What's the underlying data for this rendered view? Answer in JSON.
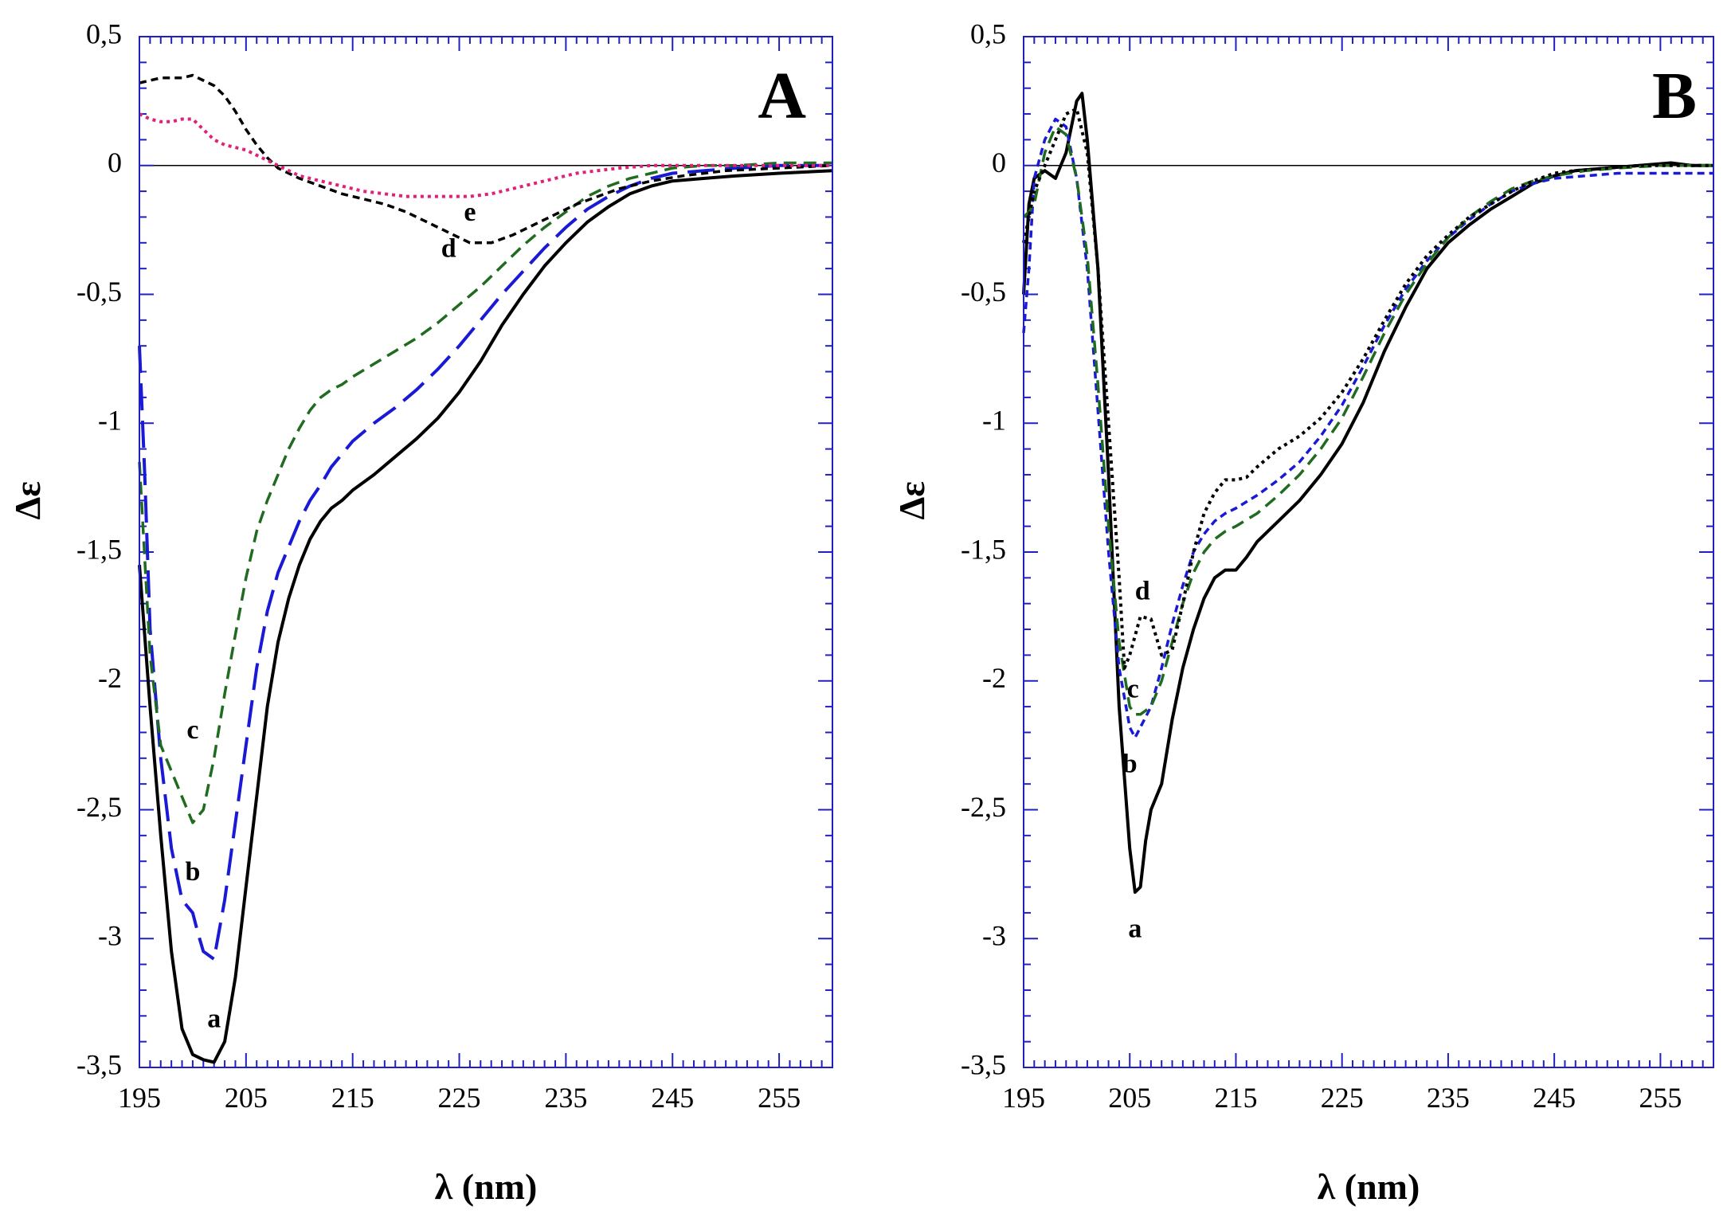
{
  "chart_data": [
    {
      "type": "line",
      "panel_label": "A",
      "xlabel": "λ (nm)",
      "ylabel": "Δε",
      "xlim": [
        195,
        260
      ],
      "ylim": [
        -3.5,
        0.5
      ],
      "xticks": [
        195,
        205,
        215,
        225,
        235,
        245,
        255
      ],
      "xtick_labels": [
        "195",
        "205",
        "215",
        "225",
        "235",
        "245",
        "255"
      ],
      "yticks": [
        0.5,
        0,
        -0.5,
        -1,
        -1.5,
        -2,
        -2.5,
        -3,
        -3.5
      ],
      "ytick_labels": [
        "0,5",
        "0",
        "-0,5",
        "-1",
        "-1,5",
        "-2",
        "-2,5",
        "-3",
        "-3,5"
      ],
      "series": [
        {
          "name": "a",
          "color": "#000000",
          "dash": "solid",
          "x": [
            195,
            196,
            197,
            198,
            199,
            200,
            201,
            202,
            203,
            204,
            205,
            206,
            207,
            208,
            209,
            210,
            211,
            212,
            213,
            214,
            215,
            217,
            219,
            221,
            223,
            225,
            227,
            229,
            231,
            233,
            235,
            237,
            239,
            241,
            243,
            245,
            248,
            251,
            255,
            260
          ],
          "y": [
            -1.55,
            -2.1,
            -2.6,
            -3.05,
            -3.35,
            -3.45,
            -3.47,
            -3.48,
            -3.4,
            -3.15,
            -2.8,
            -2.45,
            -2.1,
            -1.85,
            -1.68,
            -1.55,
            -1.45,
            -1.38,
            -1.33,
            -1.3,
            -1.26,
            -1.2,
            -1.13,
            -1.06,
            -0.98,
            -0.88,
            -0.76,
            -0.62,
            -0.5,
            -0.39,
            -0.3,
            -0.22,
            -0.16,
            -0.11,
            -0.08,
            -0.06,
            -0.05,
            -0.04,
            -0.03,
            -0.02
          ],
          "label_pos": [
            202,
            -3.32
          ]
        },
        {
          "name": "b",
          "color": "#1a1ad6",
          "dash": "long",
          "x": [
            195,
            195.5,
            196,
            197,
            198,
            199,
            200,
            200.5,
            201,
            202,
            203,
            204,
            205,
            206,
            207,
            208,
            209,
            210,
            211,
            212,
            213,
            214,
            215,
            217,
            219,
            221,
            223,
            225,
            227,
            229,
            231,
            233,
            235,
            237,
            239,
            241,
            243,
            245,
            248,
            251,
            255,
            260
          ],
          "y": [
            -0.7,
            -1.2,
            -1.8,
            -2.3,
            -2.65,
            -2.85,
            -2.9,
            -2.98,
            -3.05,
            -3.08,
            -2.85,
            -2.55,
            -2.25,
            -1.95,
            -1.73,
            -1.58,
            -1.48,
            -1.38,
            -1.3,
            -1.24,
            -1.17,
            -1.12,
            -1.07,
            -1.0,
            -0.94,
            -0.87,
            -0.79,
            -0.7,
            -0.6,
            -0.5,
            -0.41,
            -0.32,
            -0.24,
            -0.17,
            -0.12,
            -0.08,
            -0.05,
            -0.03,
            -0.02,
            -0.01,
            0.0,
            0.0
          ],
          "label_pos": [
            200,
            -2.75
          ]
        },
        {
          "name": "c",
          "color": "#1f6b1f",
          "dash": "medium",
          "x": [
            195,
            196,
            197,
            198,
            199,
            200,
            201,
            202,
            203,
            204,
            205,
            206,
            207,
            208,
            209,
            210,
            211,
            212,
            213,
            214,
            215,
            217,
            219,
            221,
            223,
            225,
            227,
            229,
            231,
            233,
            235,
            237,
            239,
            241,
            243,
            245,
            248,
            251,
            255,
            260
          ],
          "y": [
            -1.15,
            -1.9,
            -2.25,
            -2.35,
            -2.45,
            -2.55,
            -2.5,
            -2.3,
            -2.05,
            -1.82,
            -1.6,
            -1.42,
            -1.3,
            -1.2,
            -1.1,
            -1.02,
            -0.95,
            -0.9,
            -0.87,
            -0.85,
            -0.82,
            -0.77,
            -0.72,
            -0.67,
            -0.61,
            -0.54,
            -0.47,
            -0.39,
            -0.31,
            -0.24,
            -0.18,
            -0.12,
            -0.08,
            -0.05,
            -0.03,
            -0.01,
            0.0,
            0.0,
            0.01,
            0.01
          ],
          "label_pos": [
            200,
            -2.2
          ]
        },
        {
          "name": "d",
          "color": "#000000",
          "dash": "short",
          "x": [
            195,
            196,
            197,
            198,
            199,
            200,
            201,
            202,
            203,
            204,
            205,
            206,
            207,
            208,
            209,
            210,
            212,
            214,
            216,
            218,
            220,
            222,
            224,
            226,
            228,
            230,
            232,
            234,
            236,
            238,
            240,
            243,
            246,
            250,
            255,
            260
          ],
          "y": [
            0.32,
            0.33,
            0.34,
            0.34,
            0.34,
            0.35,
            0.33,
            0.31,
            0.27,
            0.21,
            0.14,
            0.08,
            0.03,
            -0.01,
            -0.03,
            -0.05,
            -0.08,
            -0.11,
            -0.13,
            -0.15,
            -0.18,
            -0.22,
            -0.26,
            -0.3,
            -0.3,
            -0.27,
            -0.23,
            -0.19,
            -0.15,
            -0.12,
            -0.09,
            -0.06,
            -0.04,
            -0.02,
            -0.01,
            0.0
          ],
          "label_pos": [
            224,
            -0.33
          ]
        },
        {
          "name": "e",
          "color": "#e0207a",
          "dash": "dotted",
          "x": [
            195,
            196,
            197,
            198,
            199,
            200,
            201,
            202,
            203,
            204,
            205,
            206,
            207,
            208,
            209,
            210,
            212,
            214,
            216,
            218,
            220,
            222,
            224,
            226,
            228,
            230,
            232,
            234,
            236,
            238,
            240,
            243,
            246,
            250,
            255,
            260
          ],
          "y": [
            0.2,
            0.18,
            0.17,
            0.17,
            0.18,
            0.18,
            0.14,
            0.1,
            0.08,
            0.07,
            0.06,
            0.04,
            0.02,
            0.0,
            -0.02,
            -0.04,
            -0.06,
            -0.08,
            -0.1,
            -0.11,
            -0.12,
            -0.12,
            -0.12,
            -0.12,
            -0.11,
            -0.09,
            -0.07,
            -0.05,
            -0.03,
            -0.02,
            -0.01,
            0.0,
            0.0,
            0.0,
            0.0,
            0.0
          ],
          "label_pos": [
            226,
            -0.19
          ]
        }
      ]
    },
    {
      "type": "line",
      "panel_label": "B",
      "xlabel": "λ (nm)",
      "ylabel": "Δε",
      "xlim": [
        195,
        260
      ],
      "ylim": [
        -3.5,
        0.5
      ],
      "xticks": [
        195,
        205,
        215,
        225,
        235,
        245,
        255
      ],
      "xtick_labels": [
        "195",
        "205",
        "215",
        "225",
        "235",
        "245",
        "255"
      ],
      "yticks": [
        0.5,
        0,
        -0.5,
        -1,
        -1.5,
        -2,
        -2.5,
        -3,
        -3.5
      ],
      "ytick_labels": [
        "0,5",
        "0",
        "-0,5",
        "-1",
        "-1,5",
        "-2",
        "-2,5",
        "-3",
        "-3,5"
      ],
      "series": [
        {
          "name": "a",
          "color": "#000000",
          "dash": "solid",
          "x": [
            195,
            195.5,
            196,
            197,
            198,
            199,
            200,
            200.5,
            201,
            202,
            203,
            204,
            205,
            205.5,
            206,
            206.5,
            207,
            208,
            209,
            210,
            211,
            212,
            213,
            214,
            215,
            216,
            217,
            219,
            221,
            223,
            225,
            227,
            229,
            231,
            233,
            235,
            237,
            239,
            241,
            243,
            245,
            247,
            250,
            253,
            256,
            258,
            260
          ],
          "y": [
            -0.5,
            -0.15,
            -0.05,
            -0.02,
            -0.05,
            0.05,
            0.25,
            0.28,
            0.1,
            -0.4,
            -1.2,
            -2.1,
            -2.65,
            -2.82,
            -2.8,
            -2.62,
            -2.5,
            -2.4,
            -2.15,
            -1.95,
            -1.8,
            -1.68,
            -1.6,
            -1.57,
            -1.57,
            -1.52,
            -1.46,
            -1.38,
            -1.3,
            -1.2,
            -1.08,
            -0.92,
            -0.72,
            -0.55,
            -0.4,
            -0.3,
            -0.23,
            -0.17,
            -0.12,
            -0.07,
            -0.04,
            -0.02,
            -0.01,
            0.0,
            0.01,
            0.0,
            0.0
          ],
          "label_pos": [
            205.5,
            -2.97
          ]
        },
        {
          "name": "b",
          "color": "#1a1ad6",
          "dash": "short",
          "x": [
            195,
            195.5,
            196,
            197,
            198,
            199,
            200,
            201,
            202,
            203,
            204,
            205,
            205.5,
            206,
            207,
            208,
            209,
            210,
            211,
            212,
            213,
            214,
            215,
            217,
            219,
            221,
            223,
            225,
            227,
            229,
            231,
            233,
            235,
            237,
            239,
            241,
            243,
            245,
            248,
            251,
            255,
            260
          ],
          "y": [
            -0.65,
            -0.4,
            -0.05,
            0.1,
            0.18,
            0.15,
            -0.05,
            -0.4,
            -0.95,
            -1.5,
            -1.95,
            -2.18,
            -2.22,
            -2.18,
            -2.1,
            -1.95,
            -1.78,
            -1.63,
            -1.5,
            -1.43,
            -1.38,
            -1.35,
            -1.33,
            -1.28,
            -1.22,
            -1.15,
            -1.05,
            -0.93,
            -0.78,
            -0.62,
            -0.48,
            -0.37,
            -0.28,
            -0.21,
            -0.15,
            -0.1,
            -0.07,
            -0.05,
            -0.04,
            -0.03,
            -0.03,
            -0.03
          ],
          "label_pos": [
            205,
            -2.33
          ]
        },
        {
          "name": "c",
          "color": "#1f6b1f",
          "dash": "medium",
          "x": [
            195,
            195.5,
            196,
            197,
            198,
            199,
            200,
            201,
            202,
            203,
            204,
            205,
            205.5,
            206,
            207,
            208,
            209,
            210,
            211,
            212,
            213,
            214,
            215,
            217,
            219,
            221,
            223,
            225,
            227,
            229,
            231,
            233,
            235,
            237,
            239,
            241,
            243,
            245,
            248,
            251,
            255,
            260
          ],
          "y": [
            -0.2,
            -0.18,
            -0.15,
            0.05,
            0.15,
            0.12,
            -0.05,
            -0.35,
            -0.85,
            -1.4,
            -1.85,
            -2.1,
            -2.13,
            -2.13,
            -2.1,
            -2.0,
            -1.85,
            -1.7,
            -1.58,
            -1.5,
            -1.45,
            -1.42,
            -1.4,
            -1.35,
            -1.28,
            -1.2,
            -1.1,
            -0.98,
            -0.82,
            -0.65,
            -0.5,
            -0.38,
            -0.28,
            -0.2,
            -0.14,
            -0.09,
            -0.06,
            -0.04,
            -0.02,
            -0.01,
            0.0,
            0.0
          ],
          "label_pos": [
            205.3,
            -2.04
          ]
        },
        {
          "name": "d",
          "color": "#000000",
          "dash": "dotted",
          "x": [
            195,
            195.5,
            196,
            197,
            198,
            199,
            200,
            201,
            202,
            203,
            204,
            204.5,
            205,
            206,
            207,
            208,
            209,
            210,
            211,
            212,
            213,
            214,
            215,
            216,
            217,
            219,
            221,
            223,
            225,
            227,
            229,
            231,
            233,
            235,
            237,
            239,
            241,
            243,
            245,
            247,
            250,
            253,
            256,
            260
          ],
          "y": [
            -0.3,
            -0.2,
            -0.1,
            0.0,
            0.1,
            0.2,
            0.22,
            0.05,
            -0.4,
            -1.0,
            -1.6,
            -1.95,
            -1.9,
            -1.75,
            -1.76,
            -1.9,
            -1.88,
            -1.7,
            -1.5,
            -1.35,
            -1.27,
            -1.22,
            -1.22,
            -1.21,
            -1.17,
            -1.1,
            -1.05,
            -0.98,
            -0.88,
            -0.75,
            -0.6,
            -0.46,
            -0.35,
            -0.27,
            -0.2,
            -0.15,
            -0.1,
            -0.06,
            -0.03,
            -0.02,
            -0.01,
            0.0,
            0.0,
            0.0
          ],
          "label_pos": [
            206.2,
            -1.66
          ]
        }
      ]
    }
  ]
}
